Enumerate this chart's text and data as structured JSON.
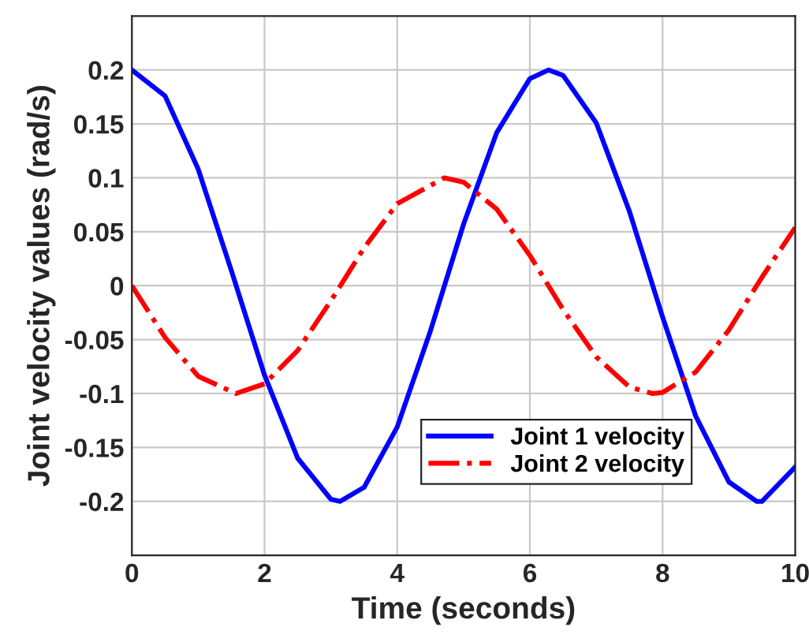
{
  "chart_data": {
    "type": "line",
    "xlabel": "Time (seconds)",
    "ylabel": "Joint velocity values (rad/s)",
    "xlim": [
      0,
      10
    ],
    "ylim": [
      -0.25,
      0.25
    ],
    "xticks": [
      0,
      2,
      4,
      6,
      8,
      10
    ],
    "yticks": [
      -0.2,
      -0.15,
      -0.1,
      -0.05,
      0,
      0.05,
      0.1,
      0.15,
      0.2
    ],
    "grid": true,
    "legend": "bottom",
    "series": [
      {
        "name": "Joint 1 velocity",
        "color": "#0000ff",
        "line_style": "solid",
        "x": [
          0,
          0.5,
          1,
          1.5,
          2,
          2.5,
          3,
          3.14,
          3.5,
          4,
          4.5,
          5,
          5.5,
          6,
          6.28,
          6.5,
          7,
          7.5,
          8,
          8.5,
          9,
          9.42,
          9.5,
          10
        ],
        "values": [
          0.2,
          0.176,
          0.108,
          0.014,
          -0.083,
          -0.16,
          -0.198,
          -0.2,
          -0.187,
          -0.131,
          -0.042,
          0.057,
          0.142,
          0.192,
          0.2,
          0.195,
          0.151,
          0.069,
          -0.029,
          -0.121,
          -0.182,
          -0.2,
          -0.2,
          -0.168
        ]
      },
      {
        "name": "Joint 2 velocity",
        "color": "#ff0000",
        "line_style": "dashdot",
        "x": [
          0,
          0.5,
          1,
          1.57,
          2,
          2.5,
          3,
          3.5,
          4,
          4.71,
          5,
          5.5,
          6,
          6.5,
          7,
          7.5,
          7.85,
          8,
          8.5,
          9,
          9.5,
          10
        ],
        "values": [
          0,
          -0.048,
          -0.084,
          -0.1,
          -0.091,
          -0.06,
          -0.014,
          0.035,
          0.076,
          0.1,
          0.096,
          0.071,
          0.028,
          -0.022,
          -0.066,
          -0.094,
          -0.1,
          -0.099,
          -0.08,
          -0.041,
          0.008,
          0.054
        ]
      }
    ]
  }
}
